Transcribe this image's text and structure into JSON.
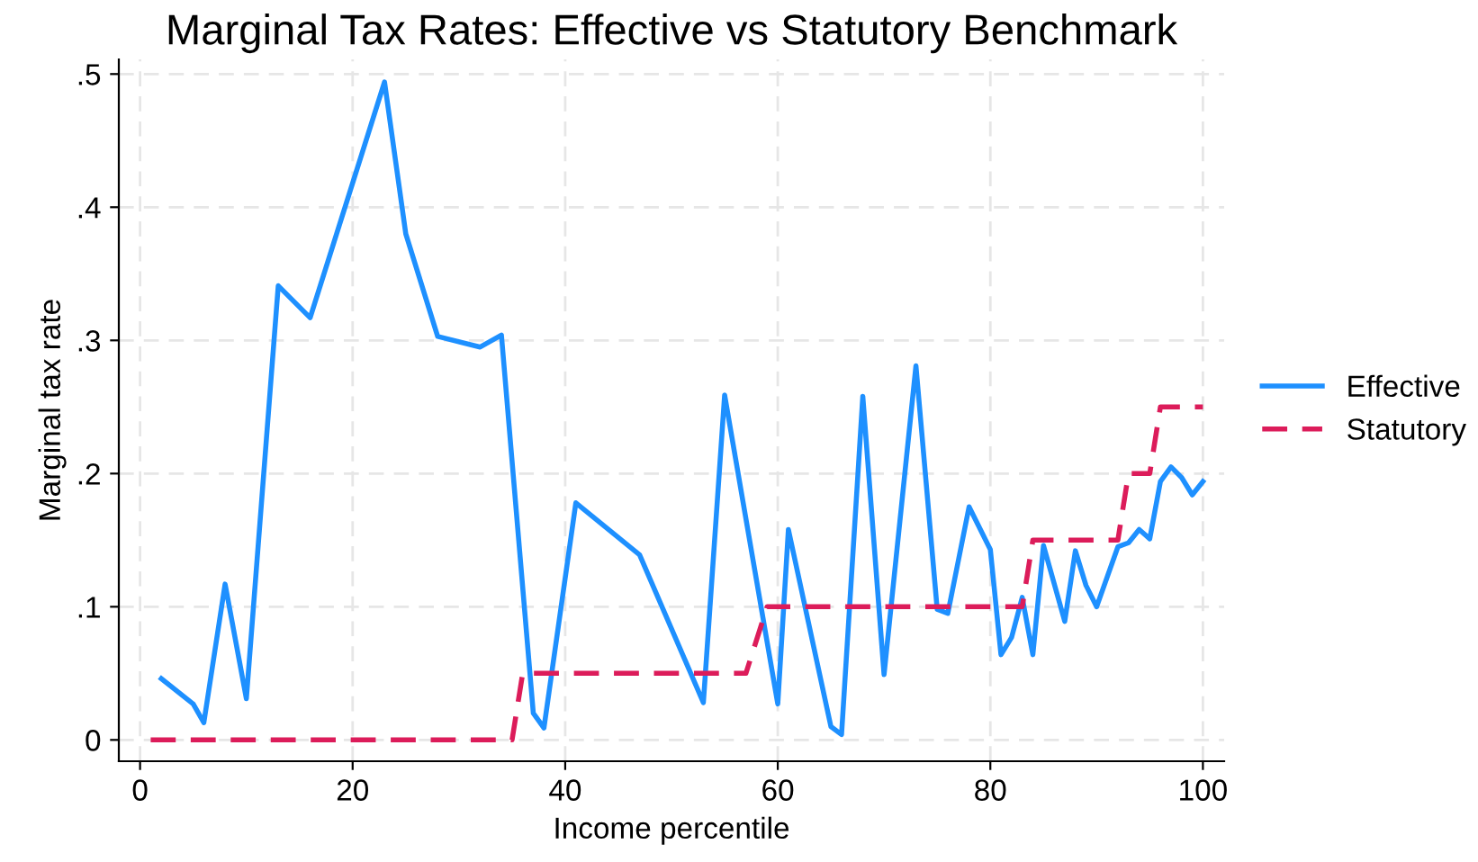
{
  "chart_data": {
    "type": "line",
    "title": "Marginal Tax Rates: Effective vs Statutory Benchmark",
    "xlabel": "Income percentile",
    "ylabel": "Marginal tax rate",
    "series": [
      {
        "name": "Effective",
        "color": "#1e90ff",
        "line_style": "solid",
        "x": [
          2,
          5,
          6,
          8,
          10,
          13,
          16,
          23,
          25,
          28,
          32,
          34,
          37,
          38,
          41,
          47,
          53,
          55,
          60,
          61,
          65,
          66,
          68,
          70,
          73,
          75,
          76,
          78,
          80,
          81,
          82,
          83,
          84,
          85,
          87,
          88,
          89,
          90,
          92,
          93,
          94,
          95,
          96,
          97,
          98,
          99,
          100
        ],
        "values": [
          0.046,
          0.027,
          0.013,
          0.117,
          0.031,
          0.341,
          0.317,
          0.494,
          0.38,
          0.303,
          0.295,
          0.304,
          0.02,
          0.009,
          0.178,
          0.139,
          0.028,
          0.259,
          0.027,
          0.158,
          0.01,
          0.004,
          0.258,
          0.049,
          0.281,
          0.098,
          0.095,
          0.175,
          0.143,
          0.064,
          0.077,
          0.107,
          0.064,
          0.146,
          0.089,
          0.142,
          0.116,
          0.1,
          0.145,
          0.148,
          0.158,
          0.151,
          0.194,
          0.205,
          0.197,
          0.184,
          0.194
        ]
      },
      {
        "name": "Statutory",
        "color": "#dc1c5a",
        "line_style": "dashed",
        "x": [
          1,
          35,
          36,
          57,
          59,
          83,
          84,
          92,
          93,
          95,
          96,
          100
        ],
        "values": [
          0,
          0,
          0.05,
          0.05,
          0.1,
          0.1,
          0.15,
          0.15,
          0.2,
          0.2,
          0.25,
          0.25
        ]
      }
    ],
    "xlim": [
      -2,
      102
    ],
    "ylim": [
      -0.016,
      0.511
    ],
    "xticks": [
      0,
      20,
      40,
      60,
      80,
      100
    ],
    "yticks": [
      {
        "value": 0,
        "label": "0"
      },
      {
        "value": 0.1,
        "label": ".1"
      },
      {
        "value": 0.2,
        "label": ".2"
      },
      {
        "value": 0.3,
        "label": ".3"
      },
      {
        "value": 0.4,
        "label": ".4"
      },
      {
        "value": 0.5,
        "label": ".5"
      }
    ],
    "grid": true,
    "legend": "right",
    "marker": "none"
  }
}
